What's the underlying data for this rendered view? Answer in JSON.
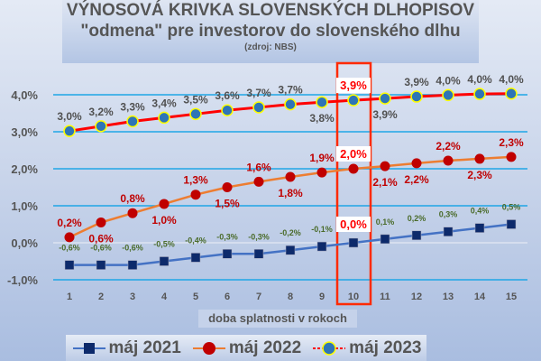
{
  "chart_data": {
    "type": "line",
    "title": "VÝNOSOVÁ KRIVKA SLOVENSKÝCH DLHOPISOV",
    "subtitle": "\"odmena\" pre investorov do slovenského dlhu",
    "source": "(zdroj: NBS)",
    "xlabel": "doba splatnosti v rokoch",
    "ylabel": "",
    "x": [
      1,
      2,
      3,
      4,
      5,
      6,
      7,
      8,
      9,
      10,
      11,
      12,
      13,
      14,
      15
    ],
    "ylim": [
      -1.0,
      4.0
    ],
    "yticks": [
      "-1,0%",
      "0,0%",
      "1,0%",
      "2,0%",
      "3,0%",
      "4,0%"
    ],
    "grid": true,
    "legend": "bottom",
    "highlight_x": 10,
    "series": [
      {
        "name": "máj 2021",
        "color": "#4472c4",
        "marker": "square",
        "marker_color": "#0d2a6b",
        "label_color": "#4a6b2a",
        "values": [
          -0.6,
          -0.6,
          -0.6,
          -0.5,
          -0.4,
          -0.3,
          -0.3,
          -0.2,
          -0.1,
          0.0,
          0.1,
          0.2,
          0.3,
          0.4,
          0.5
        ],
        "labels": [
          "-0,6%",
          "-0,6%",
          "-0,6%",
          "-0,5%",
          "-0,4%",
          "-0,3%",
          "-0,3%",
          "-0,2%",
          "-0,1%",
          "0,0%",
          "0,1%",
          "0,2%",
          "0,3%",
          "0,4%",
          "0,5%"
        ]
      },
      {
        "name": "máj 2022",
        "color": "#ed7d31",
        "marker": "circle",
        "marker_color": "#c00000",
        "label_color": "#c00000",
        "values": [
          0.15,
          0.55,
          0.8,
          1.05,
          1.3,
          1.5,
          1.65,
          1.78,
          1.9,
          2.0,
          2.07,
          2.15,
          2.22,
          2.27,
          2.32
        ],
        "labels": [
          "0,2%",
          "0,6%",
          "0,8%",
          "1,0%",
          "1,3%",
          "1,5%",
          "1,6%",
          "1,8%",
          "1,9%",
          "2,0%",
          "2,1%",
          "2,2%",
          "2,2%",
          "2,3%",
          "2,3%"
        ]
      },
      {
        "name": "máj 2023",
        "color": "#ff0000",
        "marker": "circle",
        "marker_color": "#2e75b6",
        "marker_edge": "#ffff00",
        "label_color": "#505050",
        "values": [
          3.02,
          3.15,
          3.28,
          3.38,
          3.48,
          3.58,
          3.66,
          3.74,
          3.8,
          3.85,
          3.9,
          3.95,
          3.99,
          4.02,
          4.03
        ],
        "labels": [
          "3,0%",
          "3,2%",
          "3,3%",
          "3,4%",
          "3,5%",
          "3,6%",
          "3,7%",
          "3,7%",
          "3,8%",
          "3,9%",
          "3,9%",
          "3,9%",
          "4,0%",
          "4,0%",
          "4,0%"
        ]
      }
    ]
  }
}
